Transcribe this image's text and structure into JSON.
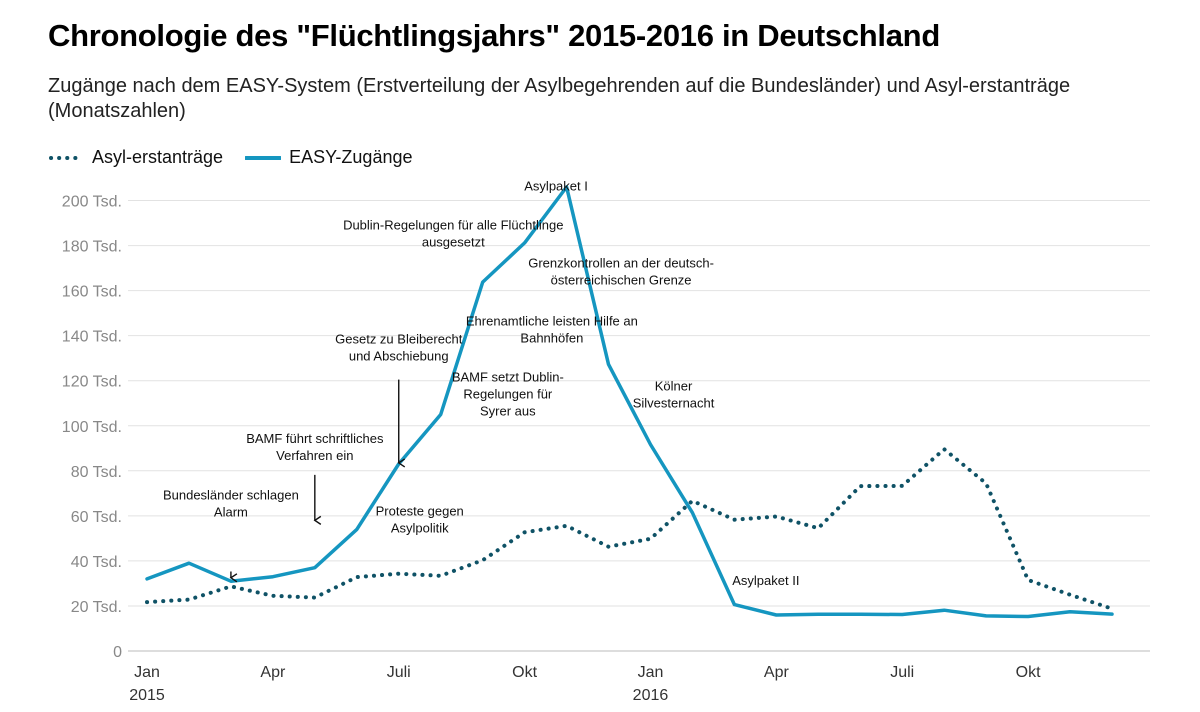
{
  "chart_data": {
    "type": "line",
    "title": "Chronologie des \"Flüchtlingsjahrs\" 2015-2016 in Deutschland",
    "subtitle": "Zugänge nach dem EASY-System (Erstverteilung der Asylbegehrenden auf die Bundesländer) und Asyl-erstanträge (Monatszahlen)",
    "xlabel": "",
    "ylabel": "",
    "x": [
      "2015-01",
      "2015-02",
      "2015-03",
      "2015-04",
      "2015-05",
      "2015-06",
      "2015-07",
      "2015-08",
      "2015-09",
      "2015-10",
      "2015-11",
      "2015-12",
      "2016-01",
      "2016-02",
      "2016-03",
      "2016-04",
      "2016-05",
      "2016-06",
      "2016-07",
      "2016-08",
      "2016-09",
      "2016-10",
      "2016-11",
      "2016-12"
    ],
    "ylim": [
      0,
      206000
    ],
    "y_ticks": [
      {
        "value": 0,
        "label": "0"
      },
      {
        "value": 20000,
        "label": "20 Tsd."
      },
      {
        "value": 40000,
        "label": "40 Tsd."
      },
      {
        "value": 60000,
        "label": "60 Tsd."
      },
      {
        "value": 80000,
        "label": "80 Tsd."
      },
      {
        "value": 100000,
        "label": "100 Tsd."
      },
      {
        "value": 120000,
        "label": "120 Tsd."
      },
      {
        "value": 140000,
        "label": "140 Tsd."
      },
      {
        "value": 160000,
        "label": "160 Tsd."
      },
      {
        "value": 180000,
        "label": "180 Tsd."
      },
      {
        "value": 200000,
        "label": "200 Tsd."
      }
    ],
    "x_ticks": [
      {
        "index": 0,
        "label": "Jan",
        "sub": "2015"
      },
      {
        "index": 3,
        "label": "Apr",
        "sub": ""
      },
      {
        "index": 6,
        "label": "Juli",
        "sub": ""
      },
      {
        "index": 9,
        "label": "Okt",
        "sub": ""
      },
      {
        "index": 12,
        "label": "Jan",
        "sub": "2016"
      },
      {
        "index": 15,
        "label": "Apr",
        "sub": ""
      },
      {
        "index": 18,
        "label": "Juli",
        "sub": ""
      },
      {
        "index": 21,
        "label": "Okt",
        "sub": ""
      }
    ],
    "grid": true,
    "legend_position": "top-left",
    "series": [
      {
        "name": "Asyl-erstanträge",
        "style": "dotted",
        "color": "#0f5266",
        "values": [
          21700,
          22800,
          28700,
          24500,
          23700,
          32800,
          34300,
          33400,
          40300,
          52700,
          55600,
          46300,
          49800,
          66700,
          58300,
          59700,
          54500,
          73200,
          73300,
          89600,
          74400,
          31500,
          25000,
          18800
        ]
      },
      {
        "name": "EASY-Zugänge",
        "style": "solid",
        "color": "#1596c0",
        "values": [
          32000,
          39000,
          31000,
          33000,
          37000,
          54000,
          83000,
          105000,
          163800,
          181200,
          206000,
          127300,
          91700,
          61400,
          20600,
          16000,
          16300,
          16300,
          16200,
          18100,
          15600,
          15300,
          17400,
          16400
        ]
      }
    ],
    "annotations": [
      {
        "lines": [
          "Bundesländer schlagen",
          "Alarm"
        ],
        "index": 2,
        "anchor": "middle",
        "y": 67200,
        "arrow": [
          35300,
          32500
        ]
      },
      {
        "lines": [
          "BAMF führt schriftliches",
          "Verfahren ein"
        ],
        "index": 4,
        "anchor": "middle",
        "y": 92400,
        "arrow": [
          78200,
          58000
        ]
      },
      {
        "lines": [
          "Gesetz zu Bleiberecht",
          "und Abschiebung"
        ],
        "index": 6,
        "anchor": "middle",
        "y": 136500,
        "arrow": [
          120500,
          83500
        ]
      },
      {
        "lines": [
          "Proteste gegen",
          "Asylpolitik"
        ],
        "index": 6.5,
        "anchor": "middle",
        "y": 60200,
        "arrow": null
      },
      {
        "lines": [
          "BAMF setzt Dublin-",
          "Regelungen für",
          "Syrer aus"
        ],
        "index": 8.6,
        "anchor": "middle",
        "y": 119600,
        "arrow": null
      },
      {
        "lines": [
          "Ehrenamtliche leisten Hilfe an",
          "Bahnhöfen"
        ],
        "index": 9.65,
        "anchor": "middle",
        "y": 144500,
        "arrow": null
      },
      {
        "lines": [
          "Dublin-Regelungen für alle Flüchtlinge",
          "ausgesetzt"
        ],
        "index": 7.3,
        "anchor": "middle",
        "y": 187100,
        "arrow": null
      },
      {
        "lines": [
          "Asylpaket I"
        ],
        "index": 9.75,
        "anchor": "middle",
        "y": 204500,
        "arrow": null
      },
      {
        "lines": [
          "Grenzkontrollen an der deutsch-",
          "österreichischen Grenze"
        ],
        "index": 11.3,
        "anchor": "middle",
        "y": 170200,
        "arrow": null
      },
      {
        "lines": [
          "Kölner",
          "Silvesternacht"
        ],
        "index": 12.55,
        "anchor": "middle",
        "y": 115600,
        "arrow": null
      },
      {
        "lines": [
          "Asylpaket II"
        ],
        "index": 14.75,
        "anchor": "middle",
        "y": 29300,
        "arrow": null
      }
    ]
  }
}
